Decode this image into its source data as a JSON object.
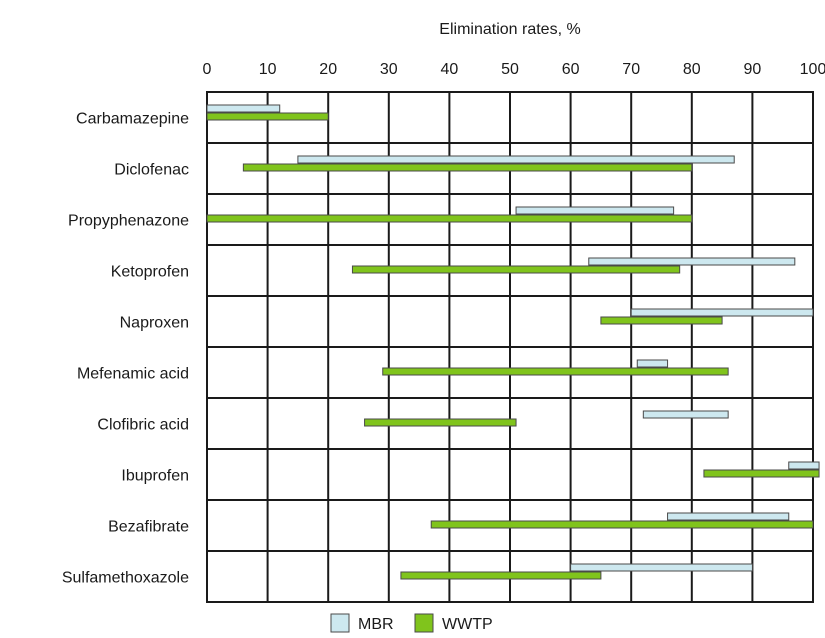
{
  "chart_data": {
    "type": "bar",
    "subtype": "floating-range-horizontal",
    "title": "",
    "xlabel": "Elimination rates, %",
    "ylabel": "",
    "xlim": [
      0,
      100
    ],
    "x_ticks": [
      0,
      10,
      20,
      30,
      40,
      50,
      60,
      70,
      80,
      90,
      100
    ],
    "x_tick_labels": [
      "0",
      "10",
      "20",
      "30",
      "40",
      "50",
      "60",
      "70",
      "80",
      "90",
      "100"
    ],
    "x_axis_position": "top",
    "grid": true,
    "legend_position": "bottom-center",
    "categories": [
      "Carbamazepine",
      "Diclofenac",
      "Propyphenazone",
      "Ketoprofen",
      "Naproxen",
      "Mefenamic acid",
      "Clofibric acid",
      "Ibuprofen",
      "Bezafibrate",
      "Sulfamethoxazole"
    ],
    "series": [
      {
        "name": "MBR",
        "color": "#cde8ef",
        "ranges": [
          [
            0,
            12
          ],
          [
            15,
            87
          ],
          [
            51,
            77
          ],
          [
            63,
            97
          ],
          [
            70,
            100
          ],
          [
            71,
            76
          ],
          [
            72,
            86
          ],
          [
            96,
            101
          ],
          [
            76,
            96
          ],
          [
            60,
            90
          ]
        ]
      },
      {
        "name": "WWTP",
        "color": "#80c41c",
        "ranges": [
          [
            0,
            20
          ],
          [
            6,
            80
          ],
          [
            0,
            80
          ],
          [
            24,
            78
          ],
          [
            65,
            85
          ],
          [
            29,
            86
          ],
          [
            26,
            51
          ],
          [
            82,
            101
          ],
          [
            37,
            100
          ],
          [
            32,
            65
          ]
        ]
      }
    ]
  },
  "colors": {
    "grid": "#1a1a1a",
    "bar_outline": "#4a4a4a"
  }
}
